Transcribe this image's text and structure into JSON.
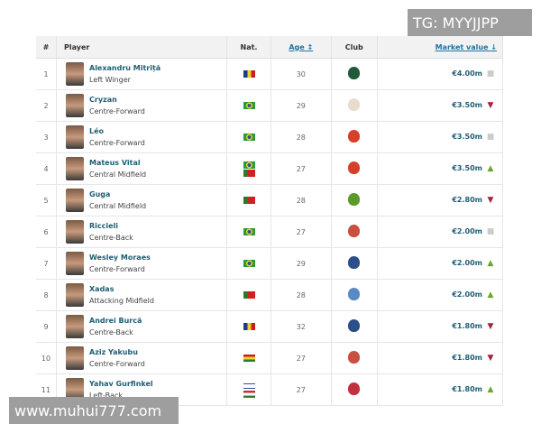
{
  "header": {
    "num": "#",
    "player": "Player",
    "nat": "Nat.",
    "age": "Age ↕",
    "club": "Club",
    "market_value": "Market value ↓"
  },
  "rows": [
    {
      "num": "1",
      "name": "Alexandru Mitriță",
      "position": "Left Winger",
      "flags": [
        "romania"
      ],
      "age": "30",
      "club_color": "#1f5a3a",
      "value": "€4.00m",
      "trend": "neutral"
    },
    {
      "num": "2",
      "name": "Cryzan",
      "position": "Centre-Forward",
      "flags": [
        "brazil"
      ],
      "age": "29",
      "club_color": "#e8dccc",
      "value": "€3.50m",
      "trend": "down"
    },
    {
      "num": "3",
      "name": "Léo",
      "position": "Centre-Forward",
      "flags": [
        "brazil"
      ],
      "age": "28",
      "club_color": "#d6402a",
      "value": "€3.50m",
      "trend": "neutral"
    },
    {
      "num": "4",
      "name": "Mateus Vital",
      "position": "Central Midfield",
      "flags": [
        "brazil",
        "portugal"
      ],
      "age": "27",
      "club_color": "#d6402a",
      "value": "€3.50m",
      "trend": "up"
    },
    {
      "num": "5",
      "name": "Guga",
      "position": "Central Midfield",
      "flags": [
        "portugal"
      ],
      "age": "28",
      "club_color": "#5a9a2a",
      "value": "€2.80m",
      "trend": "down"
    },
    {
      "num": "6",
      "name": "Riccieli",
      "position": "Centre-Back",
      "flags": [
        "brazil"
      ],
      "age": "27",
      "club_color": "#c9503e",
      "value": "€2.00m",
      "trend": "neutral"
    },
    {
      "num": "7",
      "name": "Wesley Moraes",
      "position": "Centre-Forward",
      "flags": [
        "brazil"
      ],
      "age": "29",
      "club_color": "#2a4f8a",
      "value": "€2.00m",
      "trend": "up"
    },
    {
      "num": "8",
      "name": "Xadas",
      "position": "Attacking Midfield",
      "flags": [
        "portugal"
      ],
      "age": "28",
      "club_color": "#5a8ac6",
      "value": "€2.00m",
      "trend": "up"
    },
    {
      "num": "9",
      "name": "Andrei Burcă",
      "position": "Centre-Back",
      "flags": [
        "romania"
      ],
      "age": "32",
      "club_color": "#2a4f8a",
      "value": "€1.80m",
      "trend": "down"
    },
    {
      "num": "10",
      "name": "Aziz Yakubu",
      "position": "Centre-Forward",
      "flags": [
        "ghana"
      ],
      "age": "27",
      "club_color": "#c9503e",
      "value": "€1.80m",
      "trend": "down"
    },
    {
      "num": "11",
      "name": "Yahav Gurfinkel",
      "position": "Left-Back",
      "flags": [
        "israel",
        "hungary"
      ],
      "age": "27",
      "club_color": "#c03040",
      "value": "€1.80m",
      "trend": "up"
    }
  ],
  "watermarks": {
    "top": "TG: MYYJJPP",
    "bottom": "www.muhui777.com"
  }
}
